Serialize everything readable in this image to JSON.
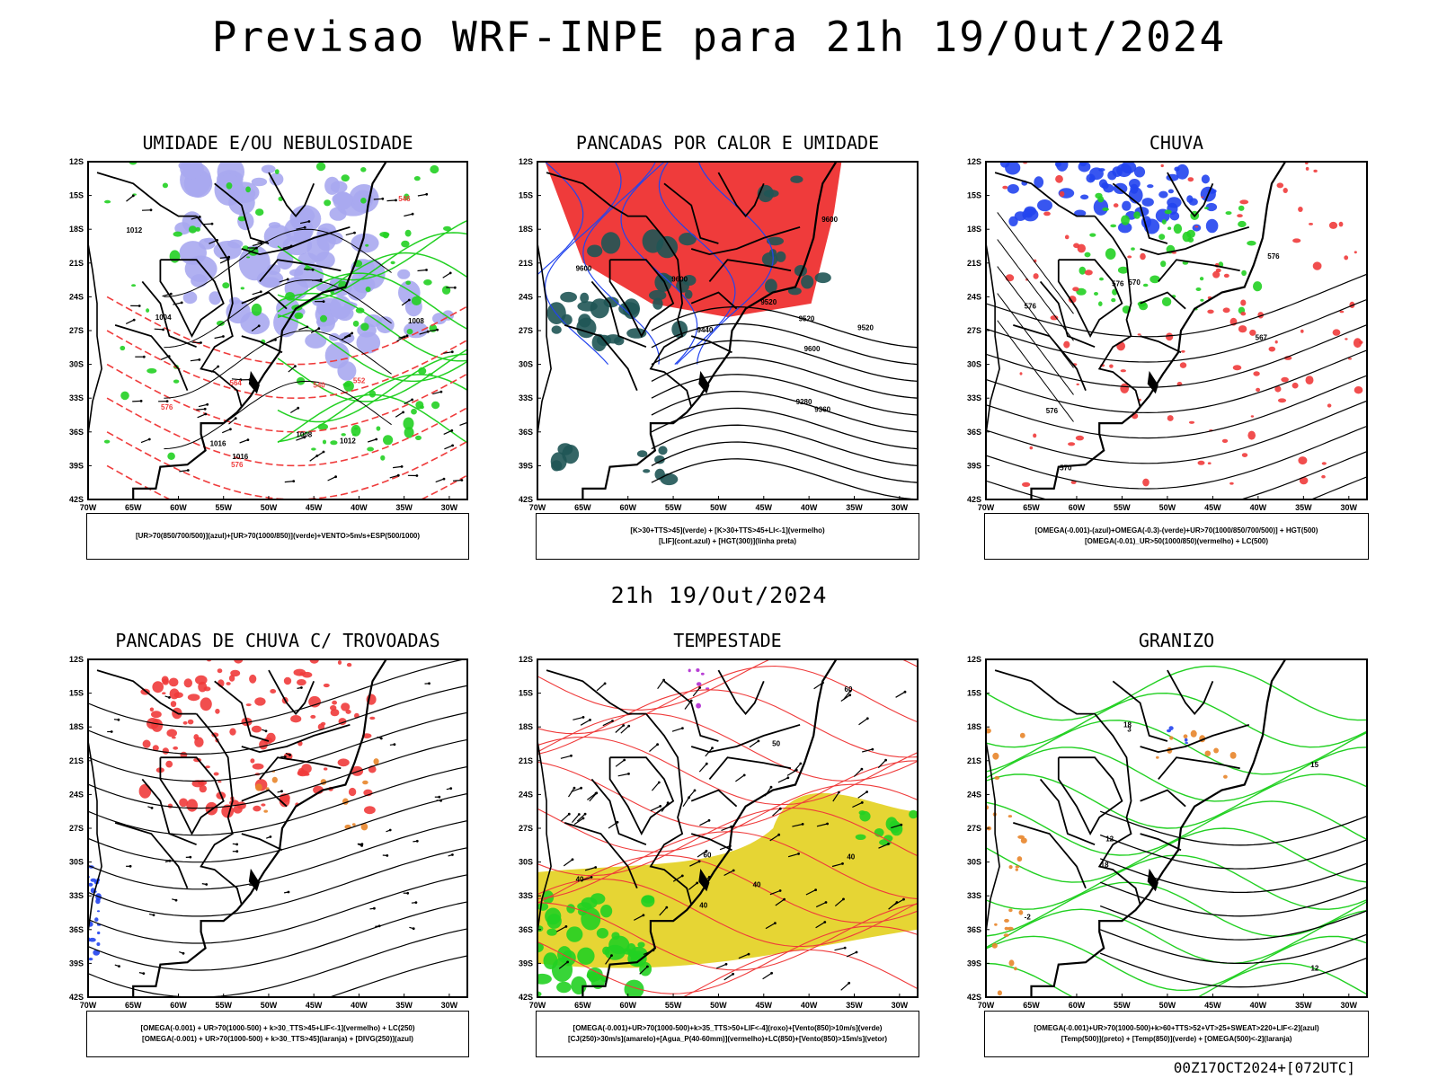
{
  "header": {
    "title": "Previsao WRF-INPE  para 21h 19/Out/2024",
    "mid_date": "21h 19/Out/2024",
    "footer": "00Z17OCT2024+[072UTC]"
  },
  "axes": {
    "lat_labels": [
      "12S",
      "15S",
      "18S",
      "21S",
      "24S",
      "27S",
      "30S",
      "33S",
      "36S",
      "39S",
      "42S"
    ],
    "lon_labels": [
      "70W",
      "65W",
      "60W",
      "55W",
      "50W",
      "45W",
      "40W",
      "35W",
      "30W"
    ]
  },
  "colors": {
    "red": "#ef3b3b",
    "green": "#22d022",
    "blue": "#2244ee",
    "lavender": "#a8a8f0",
    "teal": "#1f5555",
    "yellow": "#e6d534",
    "orange": "#e8852a",
    "purple": "#b02ad0"
  },
  "panels": [
    {
      "title": "UMIDADE E/OU NEBULOSIDADE",
      "legend": [
        "[UR>70(850/700/500)](azul)+[UR>70(1000/850)](verde)+VENTO>5m/s+ESP(500/1000)"
      ],
      "contour_labels": [
        "1012",
        "1008",
        "1016",
        "1012",
        "1008",
        "1016",
        "1004",
        "576",
        "576",
        "564",
        "552",
        "546",
        "540"
      ]
    },
    {
      "title": "PANCADAS POR CALOR E UMIDADE",
      "legend": [
        "[K>30+TTS>45](verde) + [K>30+TTS>45+LI<-1](vermelho)",
        "[LIF](cont.azul) + [HGT(300)](linha preta)"
      ],
      "contour_labels": [
        "9600",
        "9600",
        "9600",
        "9600",
        "9520",
        "9520",
        "9520",
        "9440",
        "9360",
        "9280"
      ]
    },
    {
      "title": "CHUVA",
      "legend": [
        "[OMEGA(-0.001)-(azul)+OMEGA(-0.3)-(verde)+UR>70(1000/850/700/500)] + HGT(500)",
        "[OMEGA(-0.01)_UR>50(1000/850)(vermelho) + LC(500)"
      ],
      "contour_labels": [
        "576",
        "576",
        "570",
        "576",
        "576",
        "570",
        "567"
      ]
    },
    {
      "title": "PANCADAS DE CHUVA C/ TROVOADAS",
      "legend": [
        "[OMEGA(-0.001) + UR>70(1000-500) + k>30_TTS>45+LIF<-1](vermelho) + LC(250)",
        "[OMEGA(-0.001) + UR>70(1000-500) + k>30_TTS>45](laranja) + [DIVG(250)](azul)"
      ],
      "contour_labels": []
    },
    {
      "title": "TEMPESTADE",
      "legend": [
        "[OMEGA(-0.001)+UR>70(1000-500)+k>35_TTS>50+LIF<-4](roxo)+[Vento(850)>10m/s](verde)",
        "[CJ(250)>30m/s](amarelo)+[Agua_P(40-60mm)](vermelho)+LC(850)+[Vento(850)>15m/s](vetor)"
      ],
      "contour_labels": [
        "40",
        "40",
        "40",
        "40",
        "50",
        "60",
        "60"
      ]
    },
    {
      "title": "GRANIZO",
      "legend": [
        "[OMEGA(-0.001)+UR>70(1000-500)+k>60+TTS>52+VT>25+SWEAT>220+LIF<-2](azul)",
        "[Temp(500)](preto) + [Temp(850)](verde) + [OMEGA(500)<-2](laranja)"
      ],
      "contour_labels": [
        "-2",
        "3",
        "12",
        "15",
        "18",
        "12",
        "18"
      ]
    }
  ]
}
